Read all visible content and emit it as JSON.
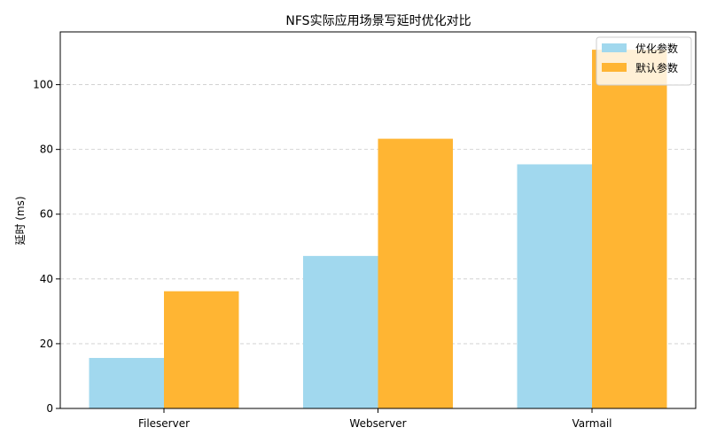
{
  "chart_data": {
    "type": "bar",
    "title": "NFS实际应用场景写延时优化对比",
    "xlabel": "",
    "ylabel": "延时 (ms)",
    "categories": [
      "Fileserver",
      "Webserver",
      "Varmail"
    ],
    "series": [
      {
        "name": "优化参数",
        "values": [
          15.6,
          47.1,
          75.4
        ],
        "color": "#a1d8ee"
      },
      {
        "name": "默认参数",
        "values": [
          36.2,
          83.3,
          110.8
        ],
        "color": "#ffb533"
      }
    ],
    "ylim": [
      0,
      116.3
    ],
    "yticks": [
      0,
      20,
      40,
      60,
      80,
      100
    ],
    "grid": {
      "y": true,
      "style": "dashed",
      "color": "#cccccc"
    },
    "legend": "top-right"
  }
}
